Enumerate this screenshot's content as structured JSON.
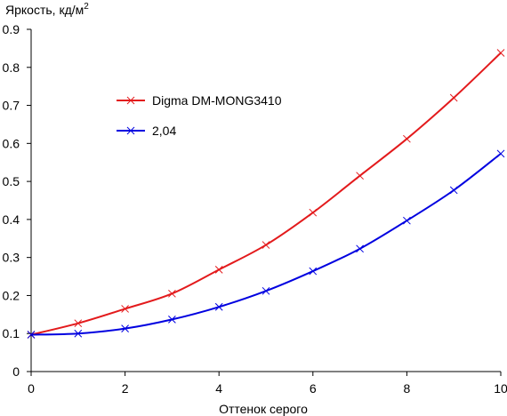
{
  "chart_data": {
    "type": "line",
    "ylabel": "Яркость, кд/м",
    "ylabel_sup": "2",
    "xlabel": "Оттенок серого",
    "xlim": [
      0,
      10
    ],
    "ylim": [
      0,
      0.9
    ],
    "xticks": [
      0,
      2,
      4,
      6,
      8,
      10
    ],
    "yticks": [
      0,
      0.1,
      0.2,
      0.3,
      0.4,
      0.5,
      0.6,
      0.7,
      0.8,
      0.9
    ],
    "ytick_labels": [
      "0",
      "0.1",
      "0.2",
      "0.3",
      "0.4",
      "0.5",
      "0.6",
      "0.7",
      "0.8",
      "0.9"
    ],
    "grid": false,
    "legend_position": "upper-left",
    "series": [
      {
        "name": "Digma DM-MONG3410",
        "color": "#e31a1c",
        "marker": "x",
        "x": [
          0,
          1,
          2,
          3,
          4,
          5,
          6,
          7,
          8,
          9,
          10
        ],
        "values": [
          0.097,
          0.127,
          0.165,
          0.205,
          0.268,
          0.333,
          0.418,
          0.515,
          0.612,
          0.72,
          0.838
        ]
      },
      {
        "name": "2,04",
        "color": "#0000e0",
        "marker": "x",
        "x": [
          0,
          1,
          2,
          3,
          4,
          5,
          6,
          7,
          8,
          9,
          10
        ],
        "values": [
          0.097,
          0.1,
          0.113,
          0.137,
          0.17,
          0.212,
          0.264,
          0.323,
          0.397,
          0.477,
          0.573
        ]
      }
    ]
  }
}
